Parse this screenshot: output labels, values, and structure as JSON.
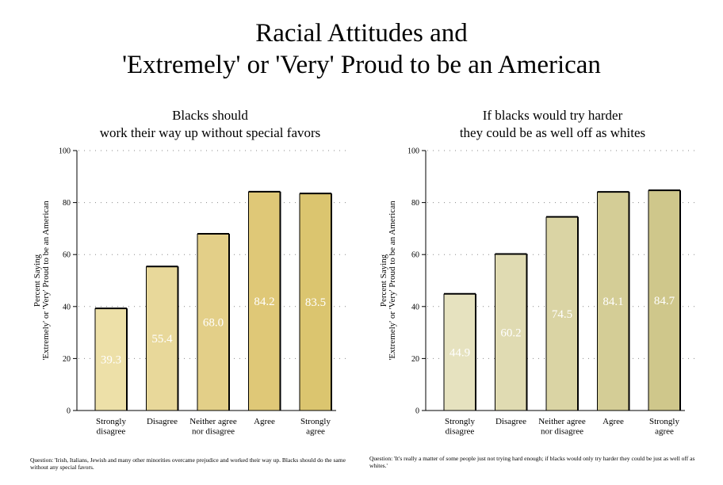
{
  "page": {
    "title_line1": "Racial Attitudes and",
    "title_line2": "'Extremely' or 'Very' Proud to be an American"
  },
  "chart_data": [
    {
      "type": "bar",
      "title_line1": "Blacks should",
      "title_line2": "work their way up without special favors",
      "ylabel_line1": "Percent Saying",
      "ylabel_line2": "'Extremely' or 'Very' Proud to be an American",
      "ylim": [
        0,
        100
      ],
      "yticks": [
        0,
        20,
        40,
        60,
        80,
        100
      ],
      "categories": [
        [
          "Strongly",
          "disagree"
        ],
        [
          "Disagree"
        ],
        [
          "Neither agree",
          "nor disagree"
        ],
        [
          "Agree"
        ],
        [
          "Strongly",
          "agree"
        ]
      ],
      "values": [
        39.3,
        55.4,
        68.0,
        84.2,
        83.5
      ],
      "labels": [
        "39.3",
        "55.4",
        "68.0",
        "84.2",
        "83.5"
      ],
      "colors": [
        "#ede0a8",
        "#e8d89a",
        "#e3cf88",
        "#dfc877",
        "#dbc56f"
      ],
      "grid": true,
      "footnote": "Question: 'Irish, Italians, Jewish and many other minorities overcame prejudice and worked their way up. Blacks should do the same without any special favors."
    },
    {
      "type": "bar",
      "title_line1": "If blacks would try harder",
      "title_line2": "they could be as well off as whites",
      "ylabel_line1": "Percent Saying",
      "ylabel_line2": "'Extremely' or 'Very' Proud to be an American",
      "ylim": [
        0,
        100
      ],
      "yticks": [
        0,
        20,
        40,
        60,
        80,
        100
      ],
      "categories": [
        [
          "Strongly",
          "disagree"
        ],
        [
          "Disagree"
        ],
        [
          "Neither agree",
          "nor disagree"
        ],
        [
          "Agree"
        ],
        [
          "Strongly",
          "agree"
        ]
      ],
      "values": [
        44.9,
        60.2,
        74.5,
        84.1,
        84.7
      ],
      "labels": [
        "44.9",
        "60.2",
        "74.5",
        "84.1",
        "84.7"
      ],
      "colors": [
        "#e6e2bf",
        "#e0dbb2",
        "#dad4a4",
        "#d4cd96",
        "#cfc78b"
      ],
      "grid": true,
      "footnote": "Question: 'It's really a matter of some people just not trying hard enough; if blacks would only try harder they could be just as well off as whites.'"
    }
  ]
}
